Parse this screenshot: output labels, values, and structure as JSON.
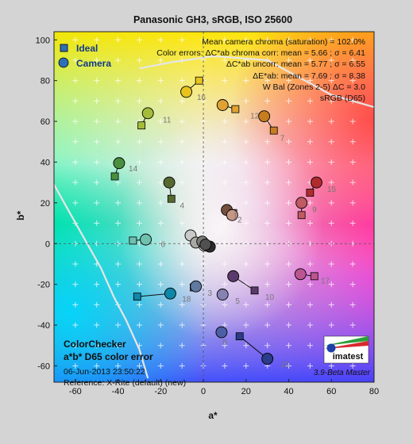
{
  "chart_data": {
    "type": "scatter",
    "title": "Panasonic GH3, sRGB, ISO 25600",
    "xlabel": "a*",
    "ylabel": "b*",
    "xlim": [
      -70,
      80
    ],
    "ylim": [
      -68,
      104
    ],
    "xticks": [
      -60,
      -40,
      -20,
      0,
      20,
      40,
      60,
      80
    ],
    "yticks": [
      -60,
      -40,
      -20,
      0,
      20,
      40,
      60,
      80,
      100
    ],
    "grid": false,
    "legend": {
      "position": "top-left",
      "entries": [
        {
          "label": "Ideal",
          "marker": "square"
        },
        {
          "label": "Camera",
          "marker": "circle"
        }
      ]
    },
    "stats": [
      "Mean camera chroma (saturation) = 102.0%",
      "Color errors: ΔC*ab chroma corr:  mean = 5.66 ;  σ = 6.41",
      "ΔC*ab uncorr:  mean = 5.77 ;  σ = 6.55",
      "ΔE*ab:  mean = 7.69 ;  σ = 8.38",
      "W Bal (Zones 2-5) ΔC = 3.0",
      "sRGB (D65)"
    ],
    "box": {
      "title1": "ColorChecker",
      "title2": "a*b* D65 color error",
      "date": "06-Jun-2013 23:50:22",
      "reference": "Reference: X-Rite (default) (new)"
    },
    "logo": "imatest",
    "version": "3.9-Beta  Master",
    "patches": [
      {
        "id": "1",
        "ideal_a": 13,
        "ideal_b": 14,
        "camera_a": 11,
        "camera_b": 16.5,
        "color": "#73513f"
      },
      {
        "id": "2",
        "ideal_a": 14,
        "ideal_b": 15,
        "camera_a": 13.5,
        "camera_b": 14,
        "color": "#c89684"
      },
      {
        "id": "3",
        "ideal_a": -4.5,
        "ideal_b": -21.5,
        "camera_a": -3.5,
        "camera_b": -21,
        "color": "#5f7a9e"
      },
      {
        "id": "4",
        "ideal_a": -15,
        "ideal_b": 22,
        "camera_a": -16,
        "camera_b": 30,
        "color": "#56692f"
      },
      {
        "id": "5",
        "ideal_a": 9,
        "ideal_b": -25,
        "camera_a": 9,
        "camera_b": -25,
        "color": "#8583b2"
      },
      {
        "id": "6",
        "ideal_a": -33,
        "ideal_b": 1.5,
        "camera_a": -27,
        "camera_b": 2,
        "color": "#70c0ae"
      },
      {
        "id": "7",
        "ideal_a": 33,
        "ideal_b": 55.5,
        "camera_a": 28.5,
        "camera_b": 62.5,
        "color": "#c77d1f"
      },
      {
        "id": "8",
        "ideal_a": 8.5,
        "ideal_b": -43.5,
        "camera_a": 8.5,
        "camera_b": -43.5,
        "color": "#4c5fa6"
      },
      {
        "id": "9",
        "ideal_a": 46,
        "ideal_b": 14,
        "camera_a": 46,
        "camera_b": 20,
        "color": "#c15a61"
      },
      {
        "id": "10",
        "ideal_a": 24,
        "ideal_b": -23,
        "camera_a": 14,
        "camera_b": -16,
        "color": "#5a3a6b"
      },
      {
        "id": "11",
        "ideal_a": -29,
        "ideal_b": 58,
        "camera_a": -26,
        "camera_b": 64,
        "color": "#a5bc3b"
      },
      {
        "id": "12",
        "ideal_a": 15,
        "ideal_b": 66,
        "camera_a": 9,
        "camera_b": 68,
        "color": "#e0a232"
      },
      {
        "id": "13",
        "ideal_a": 17,
        "ideal_b": -45.5,
        "camera_a": 30,
        "camera_b": -56.5,
        "color": "#2a3c8a"
      },
      {
        "id": "14",
        "ideal_a": -41.5,
        "ideal_b": 33,
        "camera_a": -39.5,
        "camera_b": 39.5,
        "color": "#4a8f40"
      },
      {
        "id": "15",
        "ideal_a": 50,
        "ideal_b": 25,
        "camera_a": 53,
        "camera_b": 30,
        "color": "#b12b2e"
      },
      {
        "id": "16",
        "ideal_a": -2,
        "ideal_b": 80,
        "camera_a": -8,
        "camera_b": 74.5,
        "color": "#e8c31d"
      },
      {
        "id": "17",
        "ideal_a": 52,
        "ideal_b": -16,
        "camera_a": 45.5,
        "camera_b": -15,
        "color": "#bc5690"
      },
      {
        "id": "18",
        "ideal_a": -31,
        "ideal_b": -26,
        "camera_a": -15.5,
        "camera_b": -24.5,
        "color": "#0f87a8"
      },
      {
        "id": "19",
        "ideal_a": -6,
        "ideal_b": 4,
        "camera_a": -6,
        "camera_b": 4,
        "color": "#c9c9c7"
      },
      {
        "id": "20",
        "ideal_a": -3.5,
        "ideal_b": 0.5,
        "camera_a": -3.5,
        "camera_b": 0.5,
        "color": "#a8a8a5"
      },
      {
        "id": "21",
        "ideal_a": 0.5,
        "ideal_b": -1,
        "camera_a": 0.5,
        "camera_b": -1,
        "color": "#e8e8e4"
      },
      {
        "id": "22",
        "ideal_a": 3,
        "ideal_b": -1.5,
        "camera_a": 3,
        "camera_b": -1.5,
        "color": "#2b2b2b"
      },
      {
        "id": "23",
        "ideal_a": -0.5,
        "ideal_b": 1,
        "camera_a": -0.5,
        "camera_b": 1,
        "color": "#7a7a78"
      },
      {
        "id": "24",
        "ideal_a": 1,
        "ideal_b": -0.5,
        "camera_a": 1,
        "camera_b": -0.5,
        "color": "#505050"
      }
    ],
    "patch_labels": [
      {
        "text": "1",
        "a": 14,
        "b": 14
      },
      {
        "text": "2",
        "a": 16,
        "b": 12
      },
      {
        "text": "3",
        "a": 2,
        "b": -24
      },
      {
        "text": "4",
        "a": -11,
        "b": 19
      },
      {
        "text": "5",
        "a": 15,
        "b": -28
      },
      {
        "text": "6",
        "a": -20,
        "b": 0
      },
      {
        "text": "7",
        "a": 36,
        "b": 52
      },
      {
        "text": "8",
        "a": 9,
        "b": -48
      },
      {
        "text": "9",
        "a": 51,
        "b": 17
      },
      {
        "text": "10",
        "a": 29,
        "b": -26
      },
      {
        "text": "11",
        "a": -19,
        "b": 61
      },
      {
        "text": "12",
        "a": 22,
        "b": 63
      },
      {
        "text": "13",
        "a": 36,
        "b": -59
      },
      {
        "text": "14",
        "a": -35,
        "b": 37
      },
      {
        "text": "15",
        "a": 58,
        "b": 27
      },
      {
        "text": "16",
        "a": -3,
        "b": 72
      },
      {
        "text": "17",
        "a": 55,
        "b": -18
      },
      {
        "text": "18",
        "a": -10,
        "b": -27
      }
    ],
    "gamut_boundary": [
      [
        [
          -30,
          86
        ],
        [
          -15,
          89
        ],
        [
          5,
          92
        ],
        [
          30,
          90
        ],
        [
          60,
          73
        ],
        [
          80,
          67
        ]
      ],
      [
        [
          -70,
          29
        ],
        [
          -62,
          14
        ],
        [
          -55,
          1
        ],
        [
          -48,
          -12
        ],
        [
          -42,
          -26
        ],
        [
          -36,
          -38
        ],
        [
          -30,
          -52
        ],
        [
          -26,
          -66
        ]
      ]
    ]
  }
}
